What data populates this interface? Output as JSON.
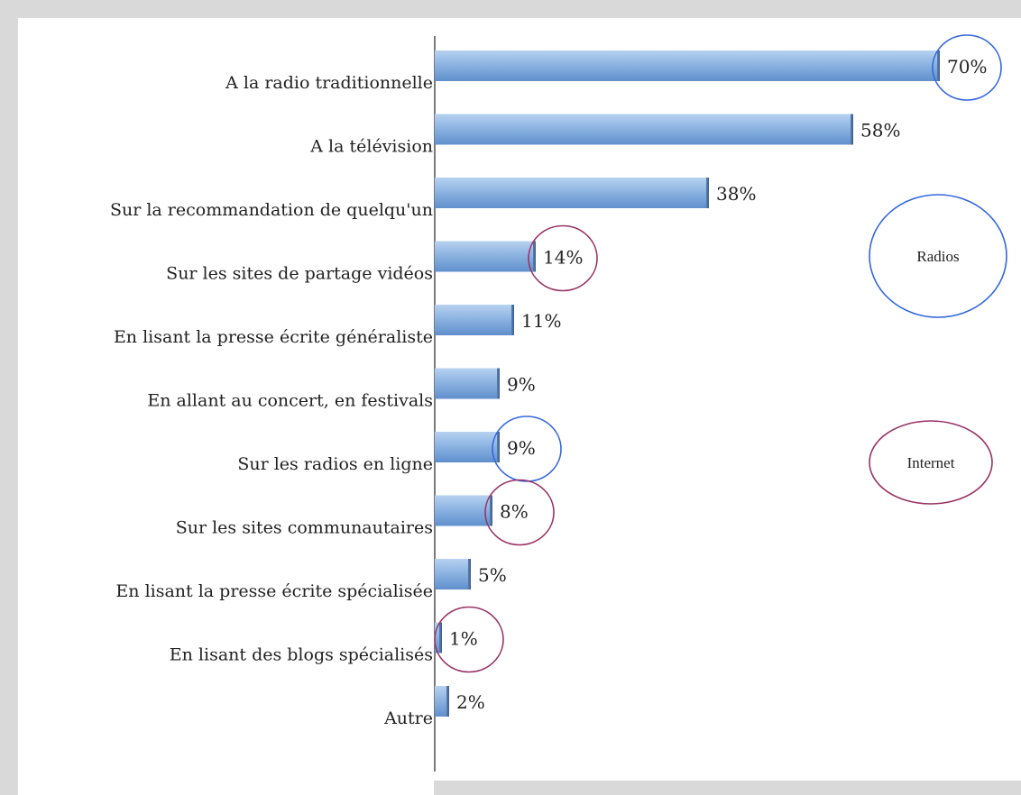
{
  "chart_data": {
    "type": "bar",
    "orientation": "horizontal",
    "categories": [
      "A la radio traditionnelle",
      "A la télévision",
      "Sur la recommandation de quelqu'un",
      "Sur les sites de partage vidéos",
      "En lisant la presse écrite généraliste",
      "En allant au concert, en festivals",
      "Sur les radios en ligne",
      "Sur les sites communautaires",
      "En lisant la presse écrite spécialisée",
      "En lisant des blogs spécialisés",
      "Autre"
    ],
    "values": [
      70,
      58,
      38,
      14,
      11,
      9,
      9,
      8,
      5,
      1,
      2
    ],
    "value_labels": [
      "70%",
      "58%",
      "38%",
      "14%",
      "11%",
      "9%",
      "9%",
      "8%",
      "5%",
      "1%",
      "2%"
    ],
    "unit": "%",
    "xlim": [
      0,
      70
    ],
    "grid": false,
    "bar_color": "#8db4e2",
    "highlight_groups": [
      {
        "name": "Radios",
        "color": "#3366dd",
        "categories": [
          0,
          6
        ]
      },
      {
        "name": "Internet",
        "color": "#993366",
        "categories": [
          3,
          7,
          9
        ]
      }
    ],
    "legend": {
      "placement": "right",
      "entries": [
        {
          "label": "Radios",
          "color": "#3366dd"
        },
        {
          "label": "Internet",
          "color": "#993366"
        }
      ]
    }
  }
}
